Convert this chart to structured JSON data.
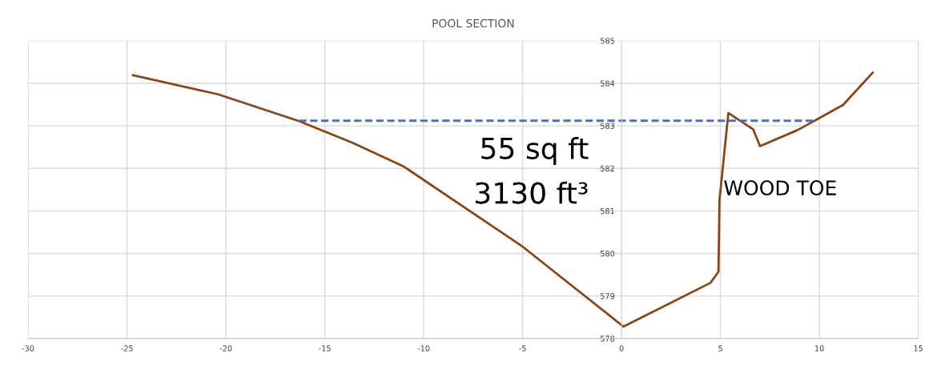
{
  "chart_data": {
    "type": "line",
    "title": "POOL SECTION",
    "series": [
      {
        "color": "#8b4513",
        "x": [
          -24.7,
          -20.4,
          -16.3,
          -13.6,
          -11.0,
          -5.0,
          0.1,
          4.5,
          4.9,
          4.95,
          5.4,
          6.65,
          7.0,
          8.9,
          11.2,
          12.7
        ],
        "values": [
          584.19,
          583.74,
          583.11,
          582.6,
          582.04,
          580.16,
          578.28,
          579.31,
          579.57,
          581.25,
          583.3,
          582.92,
          582.52,
          582.9,
          583.49,
          584.25
        ]
      },
      {
        "color": "#4472c4",
        "line_style": "dashed",
        "x": [
          -16.3,
          9.7
        ],
        "values": [
          583.12,
          583.12
        ]
      }
    ],
    "xlim": [
      -30,
      15
    ],
    "xticks": [
      -30,
      -25,
      -20,
      -15,
      -10,
      -5,
      0,
      5,
      10,
      15
    ],
    "ylim": [
      578,
      585
    ],
    "yticks": [
      578,
      579,
      580,
      581,
      582,
      583,
      584,
      585
    ],
    "grid": true,
    "legend": false,
    "annotations": [
      "55 sq ft",
      "3130 ft³",
      "WOOD TOE"
    ]
  }
}
